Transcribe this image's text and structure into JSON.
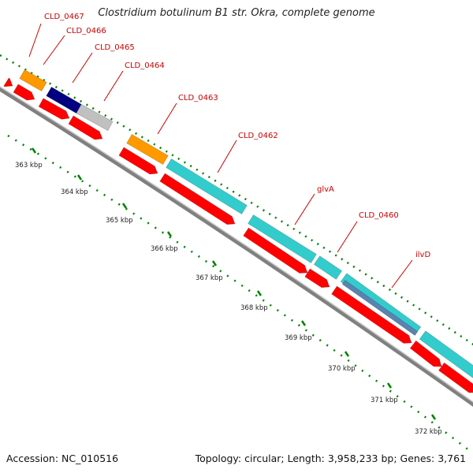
{
  "header": {
    "title": "Clostridium botulinum B1 str. Okra, complete genome"
  },
  "footer": {
    "accession": "Accession: NC_010516",
    "summary": "Topology: circular; Length: 3,958,233 bp; Genes: 3,761"
  },
  "colors": {
    "cds_red": "#ff0000",
    "gene_cyan": "#33cccc",
    "gene_orange": "#ff9900",
    "gene_navy": "#000080",
    "gene_grey": "#c0c0c0",
    "gene_steel": "#5b82b0",
    "backbone": "#808080",
    "tick_green": "#008000",
    "label_red": "#cc0000"
  },
  "map": {
    "tick_labels": [
      "363 kbp",
      "364 kbp",
      "365 kbp",
      "366 kbp",
      "367 kbp",
      "368 kbp",
      "369 kbp",
      "370 kbp",
      "371 kbp",
      "372 kbp"
    ],
    "gene_labels": [
      "CLD_0467",
      "CLD_0466",
      "CLD_0465",
      "CLD_0464",
      "CLD_0463",
      "CLD_0462",
      "glvA",
      "CLD_0460",
      "ilvD"
    ]
  }
}
